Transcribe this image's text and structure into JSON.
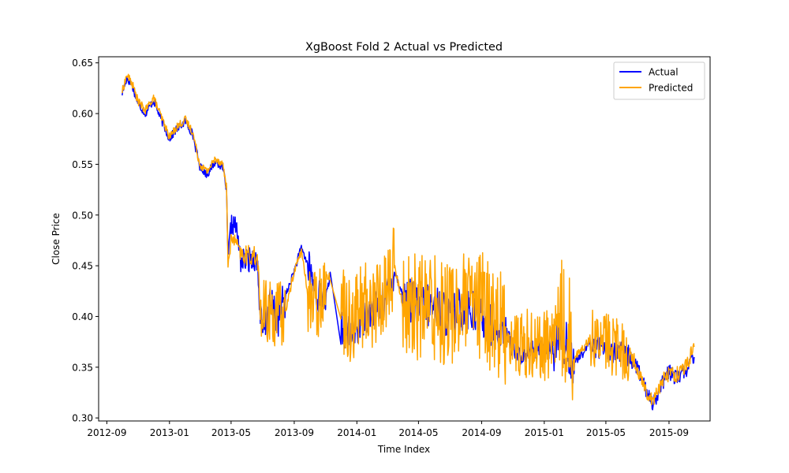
{
  "chart_data": {
    "type": "line",
    "title": "XgBoost Fold 2 Actual vs Predicted",
    "xlabel": "Time Index",
    "ylabel": "Close Price",
    "xlim": [
      "2012-08-16",
      "2015-11-20"
    ],
    "ylim": [
      0.297,
      0.656
    ],
    "x_ticks": [
      "2012-09-01",
      "2013-01-01",
      "2013-05-01",
      "2013-09-01",
      "2014-01-01",
      "2014-05-01",
      "2014-09-01",
      "2015-01-01",
      "2015-05-01",
      "2015-09-01"
    ],
    "x_tick_labels": [
      "2012-09",
      "2013-01",
      "2013-05",
      "2013-09",
      "2014-01",
      "2014-05",
      "2014-09",
      "2015-01",
      "2015-05",
      "2015-09"
    ],
    "y_ticks": [
      0.3,
      0.35,
      0.4,
      0.45,
      0.5,
      0.55,
      0.6,
      0.65
    ],
    "y_tick_labels": [
      "0.30",
      "0.35",
      "0.40",
      "0.45",
      "0.50",
      "0.55",
      "0.60",
      "0.65"
    ],
    "grid": false,
    "legend": "top-right",
    "series": [
      {
        "name": "Actual",
        "color": "#0000ff",
        "noise_bands": [
          [
            "2013-04-25",
            "2013-05-20",
            0.01
          ],
          [
            "2013-05-20",
            "2013-06-26",
            0.012
          ],
          [
            "2013-06-26",
            "2013-08-15",
            0.02
          ],
          [
            "2013-09-28",
            "2013-11-02",
            0.018
          ],
          [
            "2013-12-01",
            "2014-03-15",
            0.018
          ],
          [
            "2014-04-01",
            "2014-10-20",
            0.022
          ],
          [
            "2014-10-20",
            "2015-01-20",
            0.01
          ],
          [
            "2015-01-20",
            "2015-03-01",
            0.025
          ],
          [
            "2015-04-01",
            "2015-06-15",
            0.012
          ],
          [
            "2015-06-15",
            "2015-10-20",
            0.008
          ]
        ],
        "x": [
          "2012-10-01",
          "2012-10-10",
          "2012-10-20",
          "2012-11-01",
          "2012-11-15",
          "2012-12-01",
          "2012-12-15",
          "2013-01-01",
          "2013-01-15",
          "2013-02-01",
          "2013-02-15",
          "2013-03-01",
          "2013-03-15",
          "2013-04-01",
          "2013-04-15",
          "2013-04-22",
          "2013-04-25",
          "2013-05-01",
          "2013-05-10",
          "2013-05-20",
          "2013-06-01",
          "2013-06-15",
          "2013-06-22",
          "2013-06-26",
          "2013-07-01",
          "2013-07-15",
          "2013-08-01",
          "2013-08-15",
          "2013-09-01",
          "2013-09-15",
          "2013-09-28",
          "2013-10-15",
          "2013-11-02",
          "2013-11-10",
          "2013-12-01",
          "2013-12-20",
          "2014-01-15",
          "2014-02-15",
          "2014-03-01",
          "2014-03-15",
          "2014-04-01",
          "2014-05-01",
          "2014-06-01",
          "2014-07-01",
          "2014-08-01",
          "2014-09-01",
          "2014-10-01",
          "2014-10-20",
          "2014-11-01",
          "2014-11-20",
          "2014-12-10",
          "2015-01-01",
          "2015-01-20",
          "2015-02-01",
          "2015-02-20",
          "2015-03-01",
          "2015-03-20",
          "2015-04-01",
          "2015-04-15",
          "2015-05-01",
          "2015-05-20",
          "2015-06-15",
          "2015-07-01",
          "2015-07-15",
          "2015-08-01",
          "2015-08-15",
          "2015-09-01",
          "2015-09-15",
          "2015-10-01",
          "2015-10-20"
        ],
        "y": [
          0.62,
          0.635,
          0.628,
          0.61,
          0.6,
          0.613,
          0.595,
          0.575,
          0.585,
          0.592,
          0.58,
          0.548,
          0.54,
          0.553,
          0.547,
          0.525,
          0.455,
          0.49,
          0.49,
          0.455,
          0.455,
          0.458,
          0.45,
          0.405,
          0.38,
          0.41,
          0.4,
          0.42,
          0.445,
          0.468,
          0.45,
          0.42,
          0.42,
          0.44,
          0.39,
          0.38,
          0.4,
          0.41,
          0.42,
          0.445,
          0.42,
          0.41,
          0.41,
          0.4,
          0.41,
          0.4,
          0.385,
          0.38,
          0.37,
          0.36,
          0.37,
          0.365,
          0.37,
          0.39,
          0.36,
          0.355,
          0.365,
          0.375,
          0.37,
          0.37,
          0.365,
          0.36,
          0.35,
          0.33,
          0.315,
          0.33,
          0.345,
          0.34,
          0.345,
          0.36
        ]
      },
      {
        "name": "Predicted",
        "color": "#ffa500",
        "noise_bands": [
          [
            "2013-04-25",
            "2013-05-20",
            0.006
          ],
          [
            "2013-05-20",
            "2013-06-26",
            0.01
          ],
          [
            "2013-06-26",
            "2013-08-15",
            0.035
          ],
          [
            "2013-09-28",
            "2013-11-02",
            0.035
          ],
          [
            "2013-12-01",
            "2014-03-15",
            0.045
          ],
          [
            "2014-04-01",
            "2014-10-20",
            0.055
          ],
          [
            "2014-10-20",
            "2015-01-20",
            0.035
          ],
          [
            "2015-01-20",
            "2015-03-01",
            0.06
          ],
          [
            "2015-04-01",
            "2015-06-15",
            0.03
          ],
          [
            "2015-06-15",
            "2015-10-20",
            0.008
          ]
        ],
        "x": [
          "2012-10-01",
          "2012-10-10",
          "2012-10-20",
          "2012-11-01",
          "2012-11-15",
          "2012-12-01",
          "2012-12-15",
          "2013-01-01",
          "2013-01-15",
          "2013-02-01",
          "2013-02-15",
          "2013-03-01",
          "2013-03-15",
          "2013-04-01",
          "2013-04-15",
          "2013-04-22",
          "2013-04-25",
          "2013-05-01",
          "2013-05-10",
          "2013-05-20",
          "2013-06-01",
          "2013-06-15",
          "2013-06-22",
          "2013-06-26",
          "2013-07-01",
          "2013-07-15",
          "2013-08-01",
          "2013-08-15",
          "2013-09-01",
          "2013-09-15",
          "2013-09-28",
          "2013-10-15",
          "2013-11-02",
          "2013-11-10",
          "2013-12-01",
          "2013-12-20",
          "2014-01-15",
          "2014-02-15",
          "2014-03-01",
          "2014-03-15",
          "2014-04-01",
          "2014-05-01",
          "2014-06-01",
          "2014-07-01",
          "2014-08-01",
          "2014-09-01",
          "2014-10-01",
          "2014-10-20",
          "2014-11-01",
          "2014-11-20",
          "2014-12-10",
          "2015-01-01",
          "2015-01-20",
          "2015-02-01",
          "2015-02-20",
          "2015-03-01",
          "2015-03-20",
          "2015-04-01",
          "2015-04-15",
          "2015-05-01",
          "2015-05-20",
          "2015-06-15",
          "2015-07-01",
          "2015-07-15",
          "2015-08-01",
          "2015-08-15",
          "2015-09-01",
          "2015-09-15",
          "2015-10-01",
          "2015-10-20"
        ],
        "y": [
          0.622,
          0.638,
          0.63,
          0.612,
          0.603,
          0.616,
          0.598,
          0.577,
          0.587,
          0.594,
          0.582,
          0.55,
          0.543,
          0.556,
          0.55,
          0.528,
          0.452,
          0.475,
          0.475,
          0.46,
          0.46,
          0.46,
          0.455,
          0.41,
          0.4,
          0.405,
          0.4,
          0.405,
          0.445,
          0.465,
          0.42,
          0.41,
          0.44,
          0.44,
          0.41,
          0.4,
          0.41,
          0.415,
          0.43,
          0.45,
          0.41,
          0.41,
          0.41,
          0.405,
          0.41,
          0.41,
          0.395,
          0.385,
          0.375,
          0.37,
          0.375,
          0.37,
          0.38,
          0.4,
          0.38,
          0.36,
          0.37,
          0.38,
          0.375,
          0.375,
          0.37,
          0.365,
          0.35,
          0.33,
          0.318,
          0.333,
          0.345,
          0.343,
          0.348,
          0.37
        ]
      }
    ]
  }
}
